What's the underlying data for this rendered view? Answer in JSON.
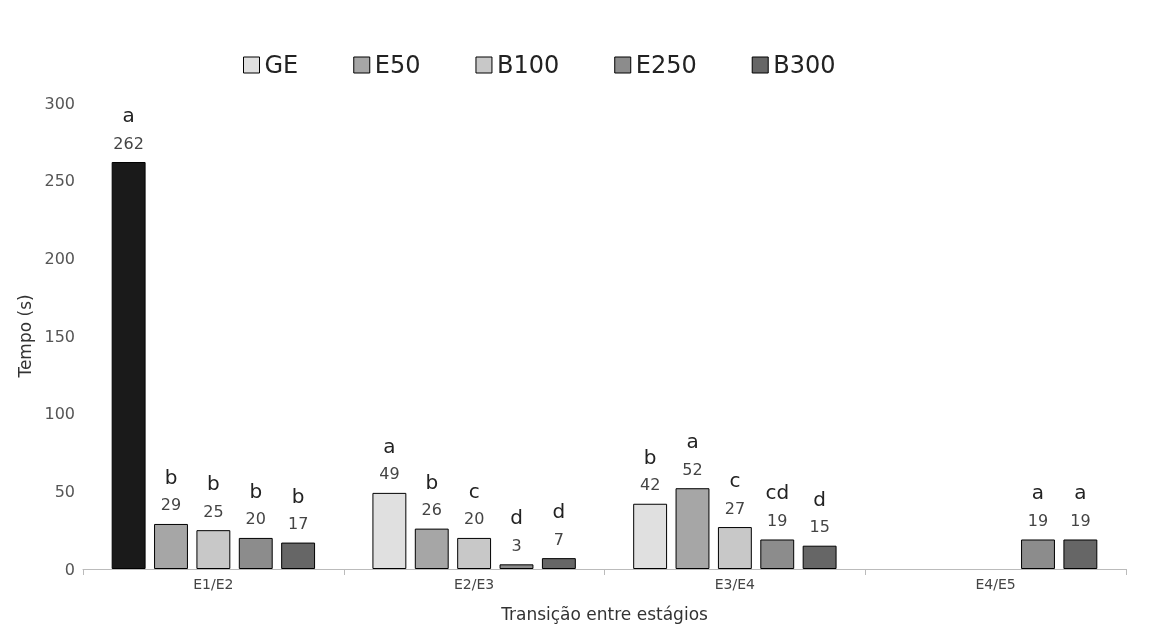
{
  "chart_data": {
    "type": "bar",
    "xlabel": "Transição entre estágios",
    "ylabel": "Tempo (s)",
    "categories": [
      "E1/E2",
      "E2/E3",
      "E3/E4",
      "E4/E5"
    ],
    "series": [
      {
        "name": "GE",
        "color": "#e0e0e0",
        "colors": [
          "#1a1a1a",
          "#e0e0e0",
          "#e0e0e0",
          "#e0e0e0"
        ],
        "values": [
          262,
          49,
          42,
          null
        ]
      },
      {
        "name": "E50",
        "color": "#a6a6a6",
        "values": [
          29,
          26,
          52,
          null
        ]
      },
      {
        "name": "B100",
        "color": "#c8c8c8",
        "values": [
          25,
          20,
          27,
          null
        ]
      },
      {
        "name": "E250",
        "color": "#8c8c8c",
        "values": [
          20,
          3,
          19,
          19
        ]
      },
      {
        "name": "B300",
        "color": "#666666",
        "values": [
          17,
          7,
          15,
          19
        ]
      }
    ],
    "annotations": [
      "a",
      "a",
      "b",
      "b",
      "b",
      "a",
      "b",
      "c",
      "c",
      "b",
      "d",
      "cd",
      "a",
      "b",
      "d",
      "d",
      "a"
    ],
    "ylim": [
      0,
      300
    ],
    "yticks": [
      0,
      50,
      100,
      150,
      200,
      250,
      300
    ],
    "grid": false,
    "legend": "top",
    "data_labels": true
  }
}
